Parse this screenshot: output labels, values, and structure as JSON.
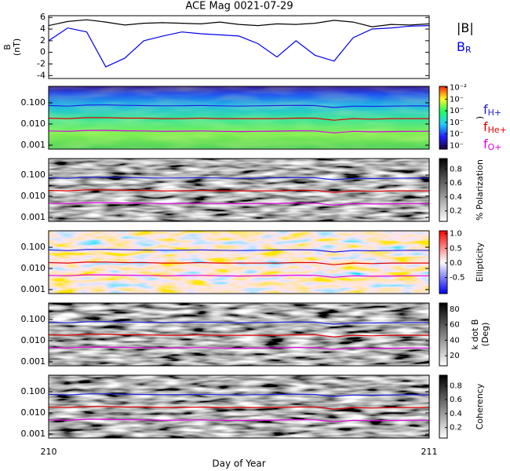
{
  "chart_data": [
    {
      "type": "line",
      "title": "ACE Mag 0021-07-29",
      "ylabel_lines": [
        "B",
        "(nT)"
      ],
      "x": [
        210,
        210.05,
        210.1,
        210.15,
        210.2,
        210.25,
        210.3,
        210.35,
        210.4,
        210.45,
        210.5,
        210.55,
        210.6,
        210.65,
        210.7,
        210.75,
        210.8,
        210.85,
        210.9,
        210.95,
        211
      ],
      "ylim": [
        -4.5,
        6.3
      ],
      "yticks": [
        -4,
        -2,
        0,
        2,
        4,
        6
      ],
      "series": [
        {
          "name": "|B|",
          "color": "#000000",
          "values": [
            4.6,
            5.3,
            5.6,
            5.2,
            4.7,
            5.0,
            5.1,
            5.0,
            4.9,
            5.2,
            4.8,
            4.6,
            4.9,
            4.8,
            5.0,
            5.5,
            5.2,
            4.4,
            4.8,
            4.7,
            4.9
          ]
        },
        {
          "name": "B",
          "subscript": "R",
          "color": "#0000ee",
          "values": [
            2.0,
            4.2,
            3.5,
            -2.5,
            -1.0,
            2.0,
            2.8,
            3.5,
            3.2,
            3.0,
            2.8,
            1.5,
            -0.8,
            2.0,
            -0.5,
            -1.5,
            2.5,
            4.0,
            4.2,
            4.5,
            4.6
          ]
        }
      ]
    },
    {
      "type": "spectrogram",
      "log_scale": true,
      "ylim": [
        0.00065,
        0.6
      ],
      "yticks": [
        {
          "value": 0.1,
          "label": "0.100"
        },
        {
          "value": 0.01,
          "label": "0.010"
        },
        {
          "value": 0.001,
          "label": "0.001"
        }
      ],
      "colorbar": {
        "label": ")",
        "clim": [
          -7.3,
          -1.9
        ],
        "ticks": [
          {
            "value": -2,
            "label": "10⁻²"
          },
          {
            "value": -3,
            "label": "10⁻"
          },
          {
            "value": -4,
            "label": "10⁻"
          },
          {
            "value": -5,
            "label": "10⁻"
          },
          {
            "value": -6,
            "label": "10⁻"
          },
          {
            "value": -7,
            "label": "10⁻"
          }
        ]
      },
      "series": [
        {
          "name": "f",
          "subscript": "H+",
          "color": "#2020e0",
          "values": [
            0.075,
            0.07,
            0.078,
            0.08,
            0.076,
            0.074,
            0.072,
            0.073,
            0.075,
            0.072,
            0.07,
            0.072,
            0.074,
            0.076,
            0.074,
            0.06,
            0.07,
            0.068,
            0.07,
            0.072,
            0.071
          ]
        },
        {
          "name": "f",
          "subscript": "He+",
          "color": "#e00000",
          "values": [
            0.019,
            0.018,
            0.02,
            0.02,
            0.019,
            0.019,
            0.018,
            0.018,
            0.019,
            0.018,
            0.018,
            0.018,
            0.018,
            0.019,
            0.019,
            0.015,
            0.018,
            0.017,
            0.018,
            0.018,
            0.018
          ]
        },
        {
          "name": "f",
          "subscript": "O+",
          "color": "#e000e0",
          "values": [
            0.0047,
            0.0045,
            0.005,
            0.005,
            0.0048,
            0.0047,
            0.0045,
            0.0046,
            0.0047,
            0.0045,
            0.0044,
            0.0045,
            0.0046,
            0.0048,
            0.0047,
            0.0038,
            0.0045,
            0.0043,
            0.0044,
            0.0045,
            0.0045
          ]
        }
      ]
    },
    {
      "type": "spectrogram",
      "log_scale": true,
      "ylim": [
        0.00065,
        0.6
      ],
      "yticks": [
        {
          "value": 0.1,
          "label": "0.100"
        },
        {
          "value": 0.01,
          "label": "0.010"
        },
        {
          "value": 0.001,
          "label": "0.001"
        }
      ],
      "colorbar": {
        "label": "% Polarization",
        "clim": [
          0.05,
          0.95
        ],
        "ticks": [
          0.2,
          0.4,
          0.6,
          0.8
        ]
      }
    },
    {
      "type": "spectrogram",
      "log_scale": true,
      "ylim": [
        0.00065,
        0.6
      ],
      "yticks": [
        {
          "value": 0.1,
          "label": "0.100"
        },
        {
          "value": 0.01,
          "label": "0.010"
        },
        {
          "value": 0.001,
          "label": "0.001"
        }
      ],
      "colorbar": {
        "label": "Ellipticity",
        "clim": [
          -1.05,
          1.1
        ],
        "ticks": [
          {
            "value": -0.5,
            "label": "-0.5"
          },
          {
            "value": 0,
            "label": "0.0"
          },
          0.5,
          {
            "value": 1,
            "label": "1.0"
          }
        ]
      }
    },
    {
      "type": "spectrogram",
      "log_scale": true,
      "ylim": [
        0.00065,
        0.6
      ],
      "yticks": [
        {
          "value": 0.1,
          "label": "0.100"
        },
        {
          "value": 0.01,
          "label": "0.010"
        },
        {
          "value": 0.001,
          "label": "0.001"
        }
      ],
      "colorbar": {
        "label_lines": [
          "k dot B",
          "(Deg)"
        ],
        "clim": [
          7,
          88
        ],
        "ticks": [
          20,
          40,
          60,
          80
        ]
      }
    },
    {
      "type": "spectrogram",
      "log_scale": true,
      "ylim": [
        0.00065,
        0.6
      ],
      "yticks": [
        {
          "value": 0.1,
          "label": "0.100"
        },
        {
          "value": 0.01,
          "label": "0.010"
        },
        {
          "value": 0.001,
          "label": "0.001"
        }
      ],
      "colorbar": {
        "label": "Coherency",
        "clim": [
          0.05,
          0.95
        ],
        "ticks": [
          0.2,
          0.4,
          0.6,
          0.8
        ]
      },
      "xlim": [
        210,
        211
      ],
      "xticks": [
        210,
        211
      ],
      "xlabel": "Day of Year"
    }
  ]
}
